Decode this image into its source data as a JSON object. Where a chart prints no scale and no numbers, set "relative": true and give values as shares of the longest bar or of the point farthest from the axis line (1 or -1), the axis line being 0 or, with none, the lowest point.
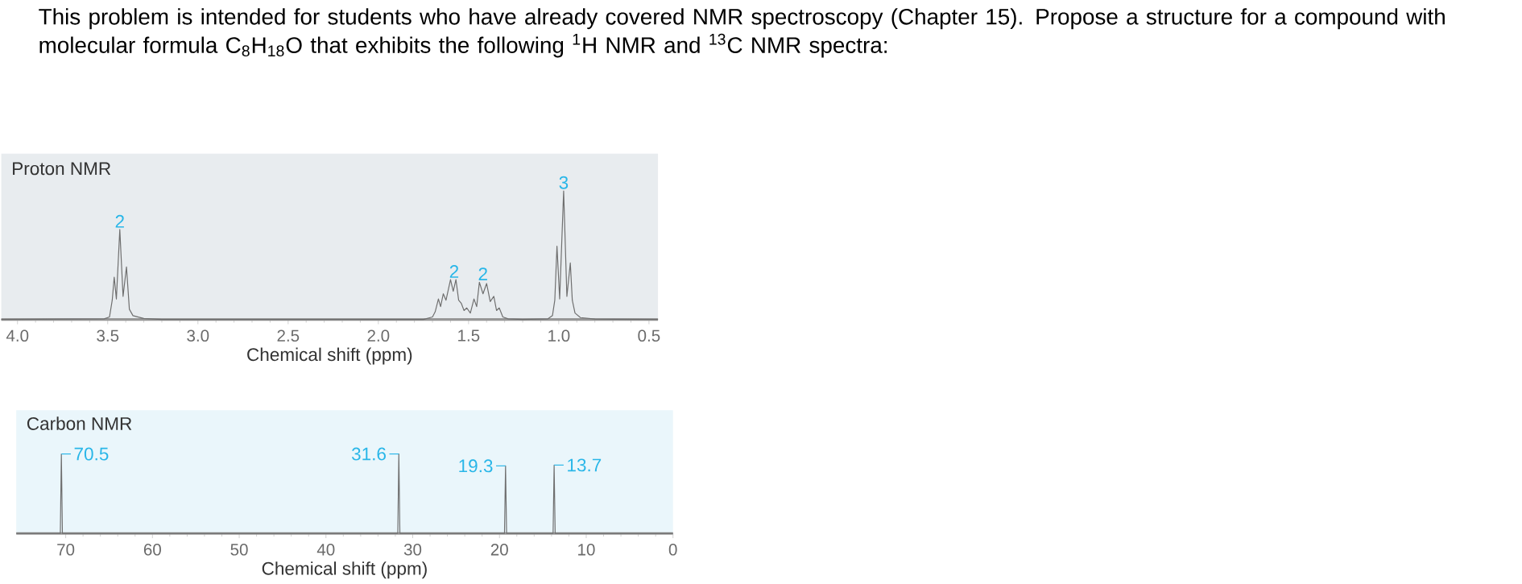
{
  "chart_data": [
    {
      "type": "line",
      "title": "This problem is intended for students who have already covered NMR spectroscopy (Chapter 15). Propose a structure for a compound with molecular formula C$_{8}$H$_{18}$O that exhibits the following $^{1}$H NMR and $^{13}$C NMR spectra:",
      "xlabel": "Chemical shift (ppm)",
      "relative": true,
      "color": "#6e6e6e",
      "xlim": [
        4.09,
        0.45
      ],
      "xticks": [
        {
          "value": 4.0,
          "label": "4.0"
        },
        {
          "value": 3.5,
          "label": "3.5"
        },
        {
          "value": 3.0,
          "label": "3.0"
        },
        {
          "value": 2.5,
          "label": "2.5"
        },
        {
          "value": 2.0,
          "label": "2.0"
        },
        {
          "value": 1.5,
          "label": "1.5"
        },
        {
          "value": 1.0,
          "label": "1.0"
        },
        {
          "value": 0.5,
          "label": "0.5"
        }
      ],
      "x": [
        4.09,
        3.52,
        3.49,
        3.475,
        3.464,
        3.452,
        3.433,
        3.415,
        3.396,
        3.38,
        3.36,
        3.3,
        3.2,
        1.75,
        1.7,
        1.685,
        1.667,
        1.655,
        1.64,
        1.625,
        1.6,
        1.585,
        1.57,
        1.555,
        1.54,
        1.525,
        1.51,
        1.49,
        1.47,
        1.455,
        1.44,
        1.42,
        1.4,
        1.38,
        1.36,
        1.345,
        1.33,
        1.31,
        1.28,
        1.2,
        1.06,
        1.035,
        1.022,
        1.01,
        0.995,
        0.973,
        0.955,
        0.936,
        0.925,
        0.91,
        0.88,
        0.8,
        0.45
      ],
      "values": [
        0,
        0.005,
        0.02,
        0.15,
        0.33,
        0.16,
        0.7,
        0.18,
        0.41,
        0.08,
        0.03,
        0.008,
        0,
        0,
        0.02,
        0.06,
        0.16,
        0.1,
        0.2,
        0.15,
        0.31,
        0.22,
        0.31,
        0.15,
        0.125,
        0.07,
        0.09,
        0.05,
        0.16,
        0.1,
        0.29,
        0.2,
        0.28,
        0.14,
        0.18,
        0.07,
        0.09,
        0.02,
        0.005,
        0,
        0.005,
        0.03,
        0.15,
        0.57,
        0.16,
        1.0,
        0.18,
        0.44,
        0.15,
        0.05,
        0.015,
        0.003,
        0
      ],
      "annotations": [
        "Proton NMR",
        {
          "text": "2",
          "x": 3.433,
          "y": 0.7
        },
        {
          "text": "2",
          "x": 1.58,
          "y": 0.31
        },
        {
          "text": "2",
          "x": 1.42,
          "y": 0.29
        },
        {
          "text": "3",
          "x": 0.973,
          "y": 1.0
        }
      ]
    },
    {
      "type": "line",
      "xlabel": "Chemical shift (ppm)",
      "relative": true,
      "color": "#6e6e6e",
      "xlim": [
        75.7,
        0
      ],
      "xticks": [
        70,
        60,
        50,
        40,
        30,
        20,
        10,
        0
      ],
      "x": [
        75.7,
        70.62,
        70.5,
        70.38,
        31.72,
        31.6,
        31.48,
        19.42,
        19.3,
        19.18,
        13.82,
        13.7,
        13.58,
        0
      ],
      "values": [
        0,
        0,
        1.0,
        0,
        0,
        1.0,
        0,
        0,
        0.85,
        0,
        0,
        0.86,
        0,
        0
      ],
      "annotations": [
        "Carbon NMR",
        {
          "text": "70.5",
          "x": 70.5,
          "y": 1.0
        },
        {
          "text": "31.6",
          "x": 31.6,
          "y": 1.0
        },
        {
          "text": "19.3",
          "x": 19.3,
          "y": 0.85
        },
        {
          "text": "13.7",
          "x": 13.7,
          "y": 0.86
        }
      ]
    }
  ]
}
